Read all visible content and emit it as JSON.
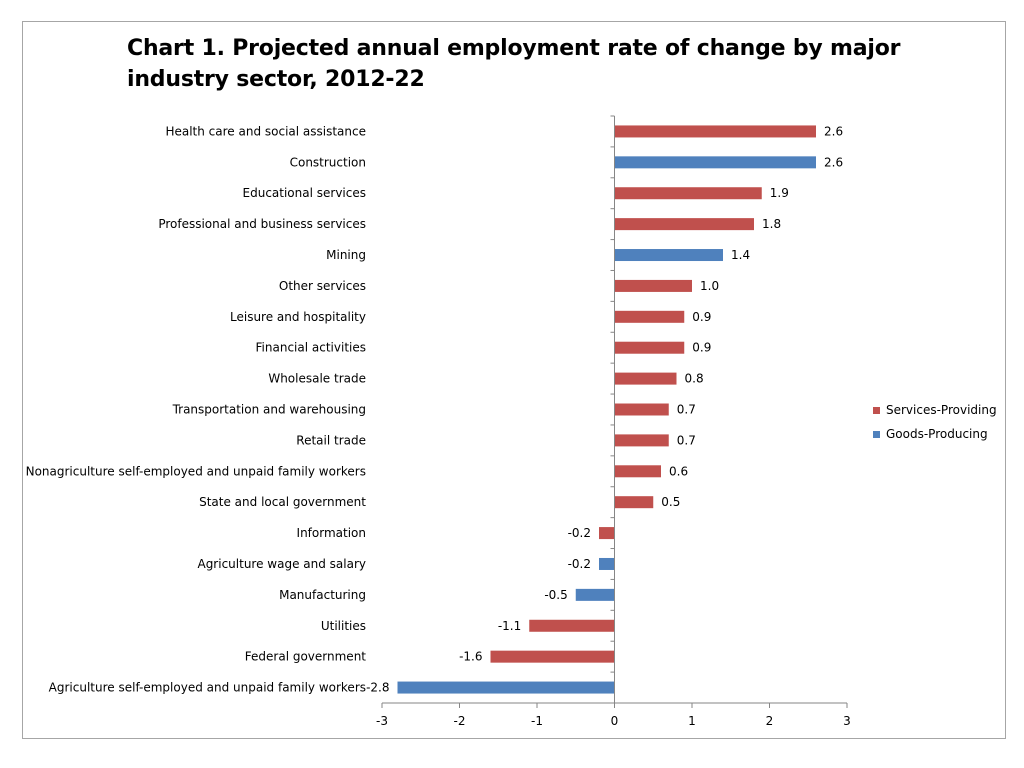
{
  "chart_data": {
    "type": "bar",
    "orientation": "horizontal",
    "title": "Chart 1. Projected annual employment rate of change by major industry sector, 2012-22",
    "xlabel": "",
    "ylabel": "",
    "xlim": [
      -3,
      3
    ],
    "x_ticks": [
      "-3",
      "-2",
      "-1",
      "0",
      "1",
      "2",
      "3"
    ],
    "legend_position": "right",
    "series": [
      {
        "name": "Services-Providing",
        "color": "#c0504d"
      },
      {
        "name": "Goods-Producing",
        "color": "#4f81bd"
      }
    ],
    "bars": [
      {
        "category": "Health care and social assistance",
        "value": 2.6,
        "label": "2.6",
        "series": "Services-Providing"
      },
      {
        "category": "Construction",
        "value": 2.6,
        "label": "2.6",
        "series": "Goods-Producing"
      },
      {
        "category": "Educational services",
        "value": 1.9,
        "label": "1.9",
        "series": "Services-Providing"
      },
      {
        "category": "Professional and business services",
        "value": 1.8,
        "label": "1.8",
        "series": "Services-Providing"
      },
      {
        "category": "Mining",
        "value": 1.4,
        "label": "1.4",
        "series": "Goods-Producing"
      },
      {
        "category": "Other services",
        "value": 1.0,
        "label": "1.0",
        "series": "Services-Providing"
      },
      {
        "category": "Leisure and hospitality",
        "value": 0.9,
        "label": "0.9",
        "series": "Services-Providing"
      },
      {
        "category": "Financial activities",
        "value": 0.9,
        "label": "0.9",
        "series": "Services-Providing"
      },
      {
        "category": "Wholesale trade",
        "value": 0.8,
        "label": "0.8",
        "series": "Services-Providing"
      },
      {
        "category": "Transportation and warehousing",
        "value": 0.7,
        "label": "0.7",
        "series": "Services-Providing"
      },
      {
        "category": "Retail trade",
        "value": 0.7,
        "label": "0.7",
        "series": "Services-Providing"
      },
      {
        "category": "Nonagriculture self-employed and unpaid family workers",
        "value": 0.6,
        "label": "0.6",
        "series": "Services-Providing"
      },
      {
        "category": "State and local government",
        "value": 0.5,
        "label": "0.5",
        "series": "Services-Providing"
      },
      {
        "category": "Information",
        "value": -0.2,
        "label": "-0.2",
        "series": "Services-Providing"
      },
      {
        "category": "Agriculture wage and salary",
        "value": -0.2,
        "label": "-0.2",
        "series": "Goods-Producing"
      },
      {
        "category": "Manufacturing",
        "value": -0.5,
        "label": "-0.5",
        "series": "Goods-Producing"
      },
      {
        "category": "Utilities",
        "value": -1.1,
        "label": "-1.1",
        "series": "Services-Providing"
      },
      {
        "category": "Federal government",
        "value": -1.6,
        "label": "-1.6",
        "series": "Services-Providing"
      },
      {
        "category": "Agriculture self-employed and unpaid family workers",
        "value": -2.8,
        "label": "-2.8",
        "series": "Goods-Producing"
      }
    ]
  }
}
